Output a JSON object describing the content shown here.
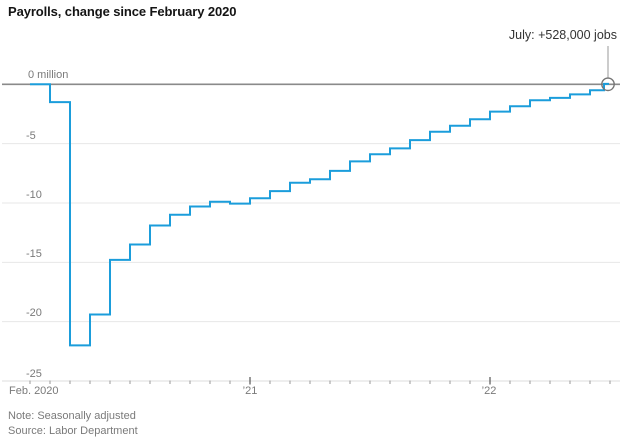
{
  "title": "Payrolls, change since February 2020",
  "note": "Note: Seasonally adjusted",
  "source": "Source: Labor Department",
  "colors": {
    "line": "#1b9ddb",
    "zero_line": "#8a8a8a",
    "gridline": "#e7e7e7",
    "axis_line": "#dddddd",
    "month_tick": "#999999",
    "year_tick": "#555555",
    "annotation_leader": "#999999",
    "marker_ring": "#757575",
    "title_text": "#141414",
    "label_text": "#7a7a7a"
  },
  "chart_data": {
    "type": "line",
    "subtype": "step-after",
    "title": "Payrolls, change since February 2020",
    "unit": "million jobs, cumulative change since Feb 2020",
    "annotation": "July: +528,000 jobs",
    "end_marker": "open-circle",
    "grid": "horizontal",
    "legend": "none",
    "ylim": [
      -25,
      0
    ],
    "yticks": [
      0,
      -5,
      -10,
      -15,
      -20,
      -25
    ],
    "ytick_labels": [
      "0 million",
      "-5",
      "-10",
      "-15",
      "-20",
      "-25"
    ],
    "xtick_labels": [
      "Feb. 2020",
      "’21",
      "’22"
    ],
    "x": [
      "Feb 2020",
      "Mar 2020",
      "Apr 2020",
      "May 2020",
      "Jun 2020",
      "Jul 2020",
      "Aug 2020",
      "Sep 2020",
      "Oct 2020",
      "Nov 2020",
      "Dec 2020",
      "Jan 2021",
      "Feb 2021",
      "Mar 2021",
      "Apr 2021",
      "May 2021",
      "Jun 2021",
      "Jul 2021",
      "Aug 2021",
      "Sep 2021",
      "Oct 2021",
      "Nov 2021",
      "Dec 2021",
      "Jan 2022",
      "Feb 2022",
      "Mar 2022",
      "Apr 2022",
      "May 2022",
      "Jun 2022",
      "Jul 2022"
    ],
    "values": [
      0,
      -1.5,
      -22.0,
      -19.4,
      -14.8,
      -13.5,
      -11.9,
      -11.0,
      -10.3,
      -9.9,
      -10.05,
      -9.6,
      -9.0,
      -8.3,
      -8.0,
      -7.3,
      -6.5,
      -5.9,
      -5.4,
      -4.7,
      -4.0,
      -3.5,
      -2.95,
      -2.3,
      -1.85,
      -1.35,
      -1.15,
      -0.85,
      -0.5,
      0.03
    ]
  }
}
